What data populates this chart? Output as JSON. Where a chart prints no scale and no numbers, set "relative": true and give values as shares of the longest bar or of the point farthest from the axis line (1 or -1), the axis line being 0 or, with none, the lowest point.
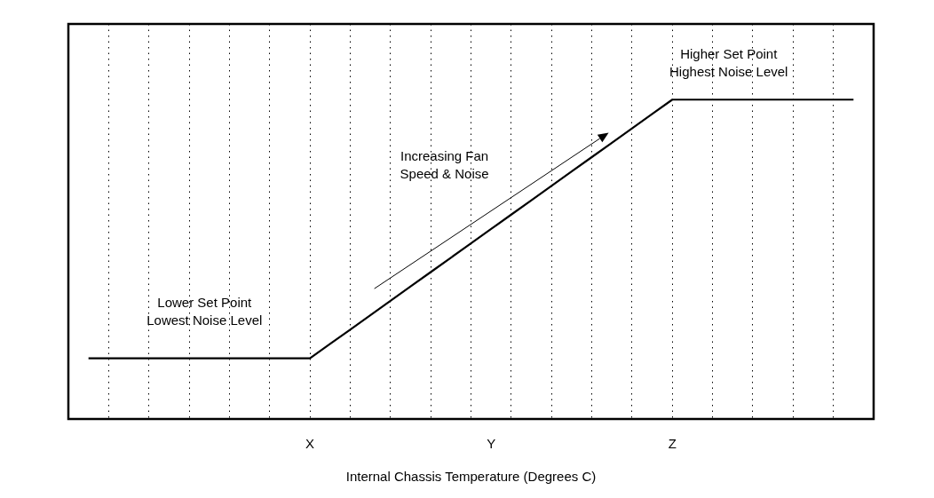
{
  "chart_data": {
    "type": "line",
    "relative": true,
    "xlabel": "Internal Chassis Temperature (Degrees C)",
    "categories": [
      null,
      null,
      null,
      null,
      null,
      null,
      null,
      null,
      null,
      null,
      null,
      null,
      "X",
      null,
      null,
      null,
      null,
      null,
      null,
      null,
      null,
      "Y",
      null,
      null,
      null,
      null,
      null,
      null,
      null,
      null,
      "Z",
      null,
      null,
      null,
      null,
      null,
      null,
      null,
      null,
      null,
      null
    ],
    "series": [
      {
        "color": "#000000",
        "values": [
          null,
          0.19,
          0.19,
          0.19,
          0.19,
          0.19,
          0.19,
          0.19,
          0.19,
          0.19,
          0.19,
          0.19,
          0.19,
          0.235,
          0.28,
          0.325,
          0.37,
          0.415,
          0.46,
          0.505,
          0.55,
          0.595,
          0.64,
          0.685,
          0.73,
          0.775,
          0.82,
          0.865,
          0.91,
          0.955,
          1,
          1,
          1,
          1,
          1,
          1,
          1,
          1,
          1,
          1,
          null
        ]
      }
    ],
    "grid": "x",
    "legend": false,
    "marker": "none",
    "line_style": "solid",
    "tick_labels": "x",
    "annotations": [
      "Lower Set Point\nLowest Noise Level",
      "Increasing Fan\nSpeed & Noise",
      "Higher Set Point\nHighest Noise Level"
    ]
  }
}
